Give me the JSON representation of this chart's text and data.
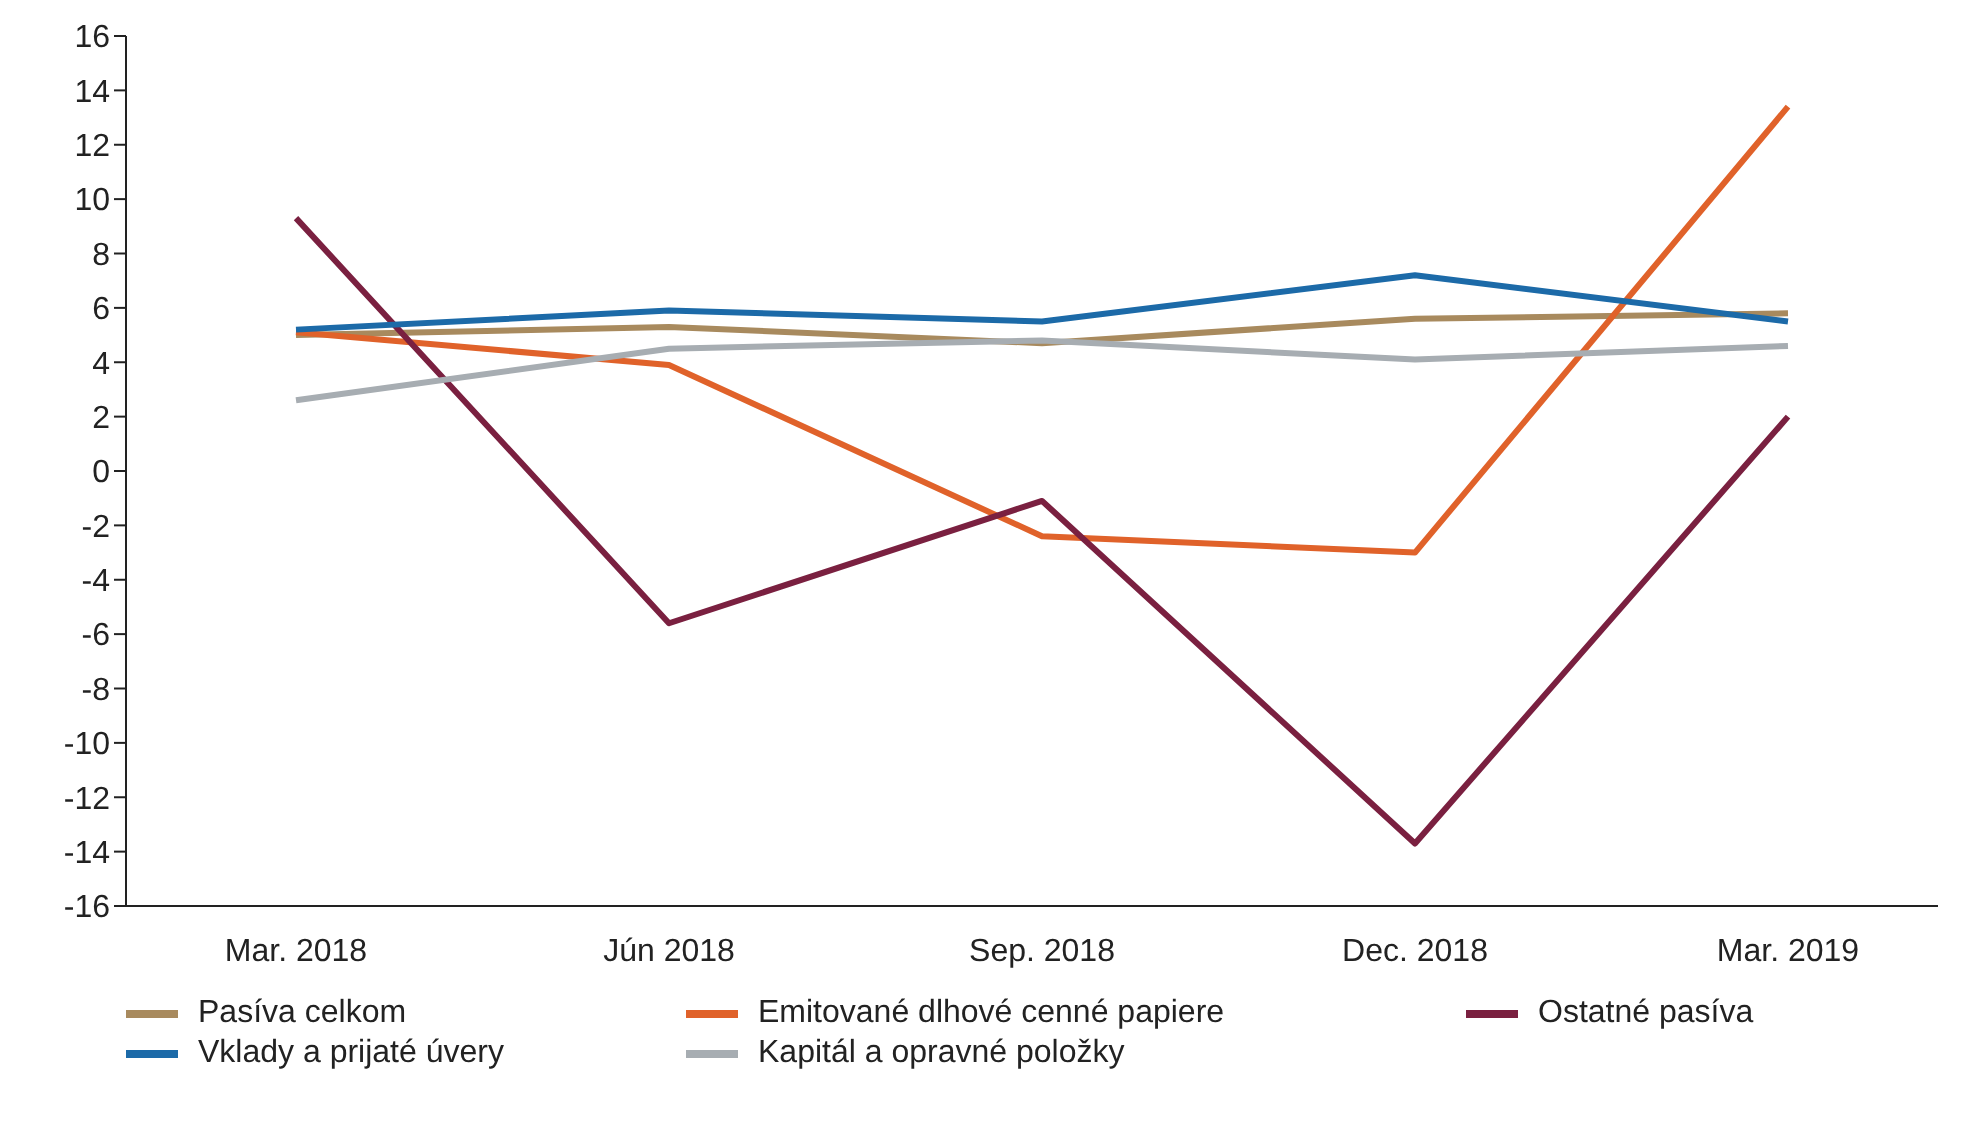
{
  "chart_data": {
    "type": "line",
    "categories": [
      "Mar. 2018",
      "Jún 2018",
      "Sep. 2018",
      "Dec. 2018",
      "Mar. 2019"
    ],
    "series": [
      {
        "name": "Pasíva celkom",
        "color": "#a88a5e",
        "values": [
          5.0,
          5.3,
          4.7,
          5.6,
          5.8
        ]
      },
      {
        "name": "Emitované dlhové cenné papiere",
        "color": "#e0622a",
        "values": [
          5.1,
          3.9,
          -2.4,
          -3.0,
          13.4
        ]
      },
      {
        "name": "Ostatné pasíva",
        "color": "#7a2040",
        "values": [
          9.3,
          -5.6,
          -1.1,
          -13.7,
          2.0
        ]
      },
      {
        "name": "Vklady a prijaté úvery",
        "color": "#1c6aa8",
        "values": [
          5.2,
          5.9,
          5.5,
          7.2,
          5.5
        ]
      },
      {
        "name": "Kapitál a opravné položky",
        "color": "#a7adb2",
        "values": [
          2.6,
          4.5,
          4.8,
          4.1,
          4.6
        ]
      }
    ],
    "ylim": [
      -16,
      16
    ],
    "yticks": [
      -16,
      -14,
      -12,
      -10,
      -8,
      -6,
      -4,
      -2,
      0,
      2,
      4,
      6,
      8,
      10,
      12,
      14,
      16
    ],
    "grid": false,
    "legend": "bottom",
    "marker": "none",
    "line_style": "solid"
  }
}
